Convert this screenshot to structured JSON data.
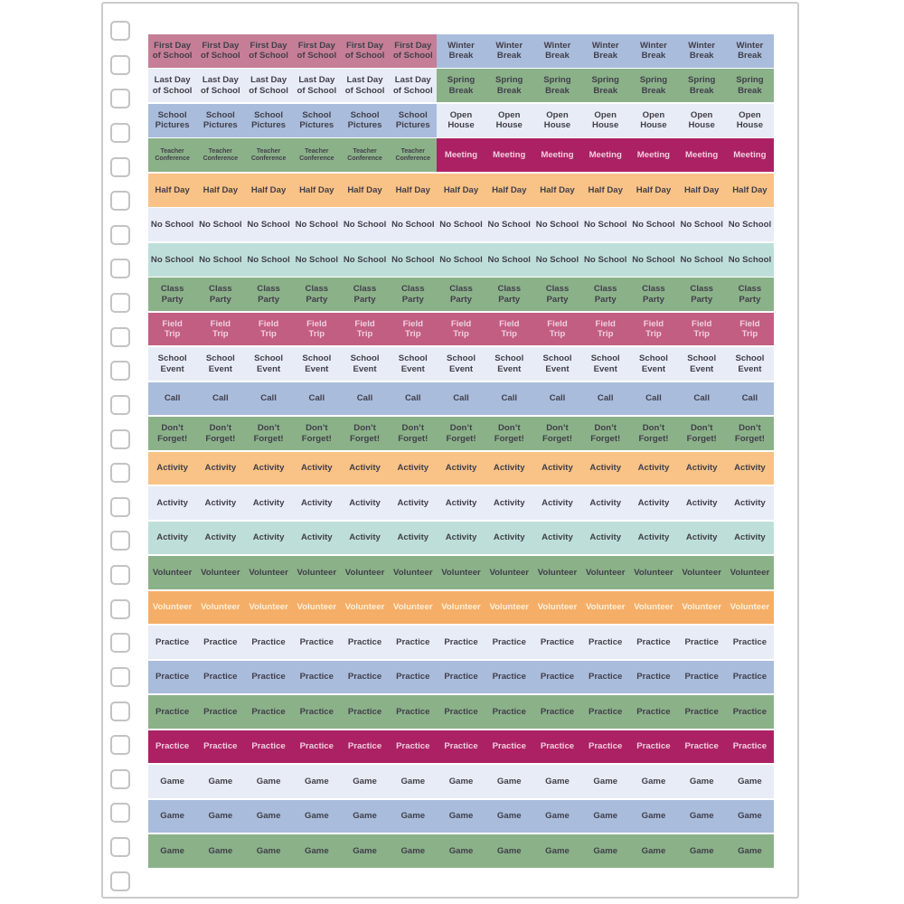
{
  "colors": {
    "mauve": "#c57e95",
    "periwinkle": "#a9bcdc",
    "lavender": "#e8ecf6",
    "green": "#8bb189",
    "magenta": "#ab2164",
    "rose": "#c25e81",
    "orange": "#f9c286",
    "orange_deep": "#f5ae67",
    "teal": "#bedfd9",
    "dark": "#413f4a",
    "light_pink": "#f2cede",
    "light_cream": "#fdf0dc",
    "page_border": "#cbcbcb",
    "hole_border": "#c3c3c3",
    "page_background": "#ffffff"
  },
  "binding": {
    "hole_count": 26
  },
  "sheet": {
    "columns_total": 13,
    "rows": [
      {
        "segments": [
          {
            "lines": [
              "First Day",
              "of School"
            ],
            "cols": 6,
            "bg": "mauve",
            "fg": "dark"
          },
          {
            "lines": [
              "Winter",
              "Break"
            ],
            "cols": 7,
            "bg": "periwinkle",
            "fg": "dark"
          }
        ]
      },
      {
        "segments": [
          {
            "lines": [
              "Last Day",
              "of School"
            ],
            "cols": 6,
            "bg": "lavender",
            "fg": "dark"
          },
          {
            "lines": [
              "Spring",
              "Break"
            ],
            "cols": 7,
            "bg": "green",
            "fg": "dark"
          }
        ]
      },
      {
        "segments": [
          {
            "lines": [
              "School",
              "Pictures"
            ],
            "cols": 6,
            "bg": "periwinkle",
            "fg": "dark"
          },
          {
            "lines": [
              "Open",
              "House"
            ],
            "cols": 7,
            "bg": "lavender",
            "fg": "dark"
          }
        ]
      },
      {
        "segments": [
          {
            "lines": [
              "Teacher",
              "Conference"
            ],
            "cols": 6,
            "bg": "green",
            "fg": "dark",
            "small": true
          },
          {
            "lines": [
              "Meeting"
            ],
            "cols": 7,
            "bg": "magenta",
            "fg": "light_pink"
          }
        ]
      },
      {
        "segments": [
          {
            "lines": [
              "Half Day"
            ],
            "cols": 13,
            "bg": "orange",
            "fg": "dark"
          }
        ]
      },
      {
        "segments": [
          {
            "lines": [
              "No School"
            ],
            "cols": 13,
            "bg": "lavender",
            "fg": "dark"
          }
        ]
      },
      {
        "segments": [
          {
            "lines": [
              "No School"
            ],
            "cols": 13,
            "bg": "teal",
            "fg": "dark"
          }
        ]
      },
      {
        "segments": [
          {
            "lines": [
              "Class",
              "Party"
            ],
            "cols": 13,
            "bg": "green",
            "fg": "dark"
          }
        ]
      },
      {
        "segments": [
          {
            "lines": [
              "Field",
              "Trip"
            ],
            "cols": 13,
            "bg": "rose",
            "fg": "light_pink"
          }
        ]
      },
      {
        "segments": [
          {
            "lines": [
              "School",
              "Event"
            ],
            "cols": 13,
            "bg": "lavender",
            "fg": "dark"
          }
        ]
      },
      {
        "segments": [
          {
            "lines": [
              "Call"
            ],
            "cols": 13,
            "bg": "periwinkle",
            "fg": "dark"
          }
        ]
      },
      {
        "segments": [
          {
            "lines": [
              "Don’t",
              "Forget!"
            ],
            "cols": 13,
            "bg": "green",
            "fg": "dark"
          }
        ]
      },
      {
        "segments": [
          {
            "lines": [
              "Activity"
            ],
            "cols": 13,
            "bg": "orange",
            "fg": "dark"
          }
        ]
      },
      {
        "segments": [
          {
            "lines": [
              "Activity"
            ],
            "cols": 13,
            "bg": "lavender",
            "fg": "dark"
          }
        ]
      },
      {
        "segments": [
          {
            "lines": [
              "Activity"
            ],
            "cols": 13,
            "bg": "teal",
            "fg": "dark"
          }
        ]
      },
      {
        "segments": [
          {
            "lines": [
              "Volunteer"
            ],
            "cols": 13,
            "bg": "green",
            "fg": "dark"
          }
        ]
      },
      {
        "segments": [
          {
            "lines": [
              "Volunteer"
            ],
            "cols": 13,
            "bg": "orange_deep",
            "fg": "light_cream"
          }
        ]
      },
      {
        "segments": [
          {
            "lines": [
              "Practice"
            ],
            "cols": 13,
            "bg": "lavender",
            "fg": "dark"
          }
        ]
      },
      {
        "segments": [
          {
            "lines": [
              "Practice"
            ],
            "cols": 13,
            "bg": "periwinkle",
            "fg": "dark"
          }
        ]
      },
      {
        "segments": [
          {
            "lines": [
              "Practice"
            ],
            "cols": 13,
            "bg": "green",
            "fg": "dark"
          }
        ]
      },
      {
        "segments": [
          {
            "lines": [
              "Practice"
            ],
            "cols": 13,
            "bg": "magenta",
            "fg": "light_pink"
          }
        ]
      },
      {
        "segments": [
          {
            "lines": [
              "Game"
            ],
            "cols": 13,
            "bg": "lavender",
            "fg": "dark"
          }
        ]
      },
      {
        "segments": [
          {
            "lines": [
              "Game"
            ],
            "cols": 13,
            "bg": "periwinkle",
            "fg": "dark"
          }
        ]
      },
      {
        "segments": [
          {
            "lines": [
              "Game"
            ],
            "cols": 13,
            "bg": "green",
            "fg": "dark"
          }
        ]
      }
    ]
  }
}
